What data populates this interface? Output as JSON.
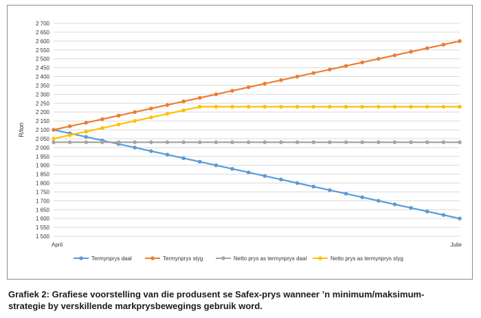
{
  "chart_data": {
    "type": "line",
    "ylabel": "R/ton",
    "ylim": [
      1500,
      2700
    ],
    "ytick_step": 50,
    "ytick_labels": [
      "1 500",
      "1 550",
      "1 600",
      "1 650",
      "1 700",
      "1 750",
      "1 800",
      "1 850",
      "1 900",
      "1 950",
      "2 000",
      "2 050",
      "2 100",
      "2 150",
      "2 200",
      "2 250",
      "2 300",
      "2 350",
      "2 400",
      "2 450",
      "2 500",
      "2 550",
      "2 600",
      "2 650",
      "2 700"
    ],
    "x_start_label": "April",
    "x_end_label": "Julie",
    "grid": true,
    "legend_position": "bottom",
    "series": [
      {
        "name": "Termynprys daal",
        "color": "#5b9bd5",
        "values": [
          2100,
          2080,
          2060,
          2040,
          2020,
          2000,
          1980,
          1960,
          1940,
          1920,
          1900,
          1880,
          1860,
          1840,
          1820,
          1800,
          1780,
          1760,
          1740,
          1720,
          1700,
          1680,
          1660,
          1640,
          1620,
          1600
        ]
      },
      {
        "name": "Termynprys styg",
        "color": "#ed7d31",
        "values": [
          2100,
          2120,
          2140,
          2160,
          2180,
          2200,
          2220,
          2240,
          2260,
          2280,
          2300,
          2320,
          2340,
          2360,
          2380,
          2400,
          2420,
          2440,
          2460,
          2480,
          2500,
          2520,
          2540,
          2560,
          2580,
          2600
        ]
      },
      {
        "name": "Netto prys as termynprys daal",
        "color": "#a5a5a5",
        "values": [
          2030,
          2030,
          2030,
          2030,
          2030,
          2030,
          2030,
          2030,
          2030,
          2030,
          2030,
          2030,
          2030,
          2030,
          2030,
          2030,
          2030,
          2030,
          2030,
          2030,
          2030,
          2030,
          2030,
          2030,
          2030,
          2030
        ]
      },
      {
        "name": "Netto prys as termynprys styg",
        "color": "#ffc000",
        "values": [
          2050,
          2070,
          2090,
          2110,
          2130,
          2150,
          2170,
          2190,
          2210,
          2230,
          2230,
          2230,
          2230,
          2230,
          2230,
          2230,
          2230,
          2230,
          2230,
          2230,
          2230,
          2230,
          2230,
          2230,
          2230,
          2230
        ]
      }
    ]
  },
  "caption": {
    "line1": "Grafiek 2: Grafiese voorstelling van die produsent se Safex-prys wanneer ’n minimum/maksimum-",
    "line2": "strategie by verskillende markprysbewegings gebruik word."
  }
}
